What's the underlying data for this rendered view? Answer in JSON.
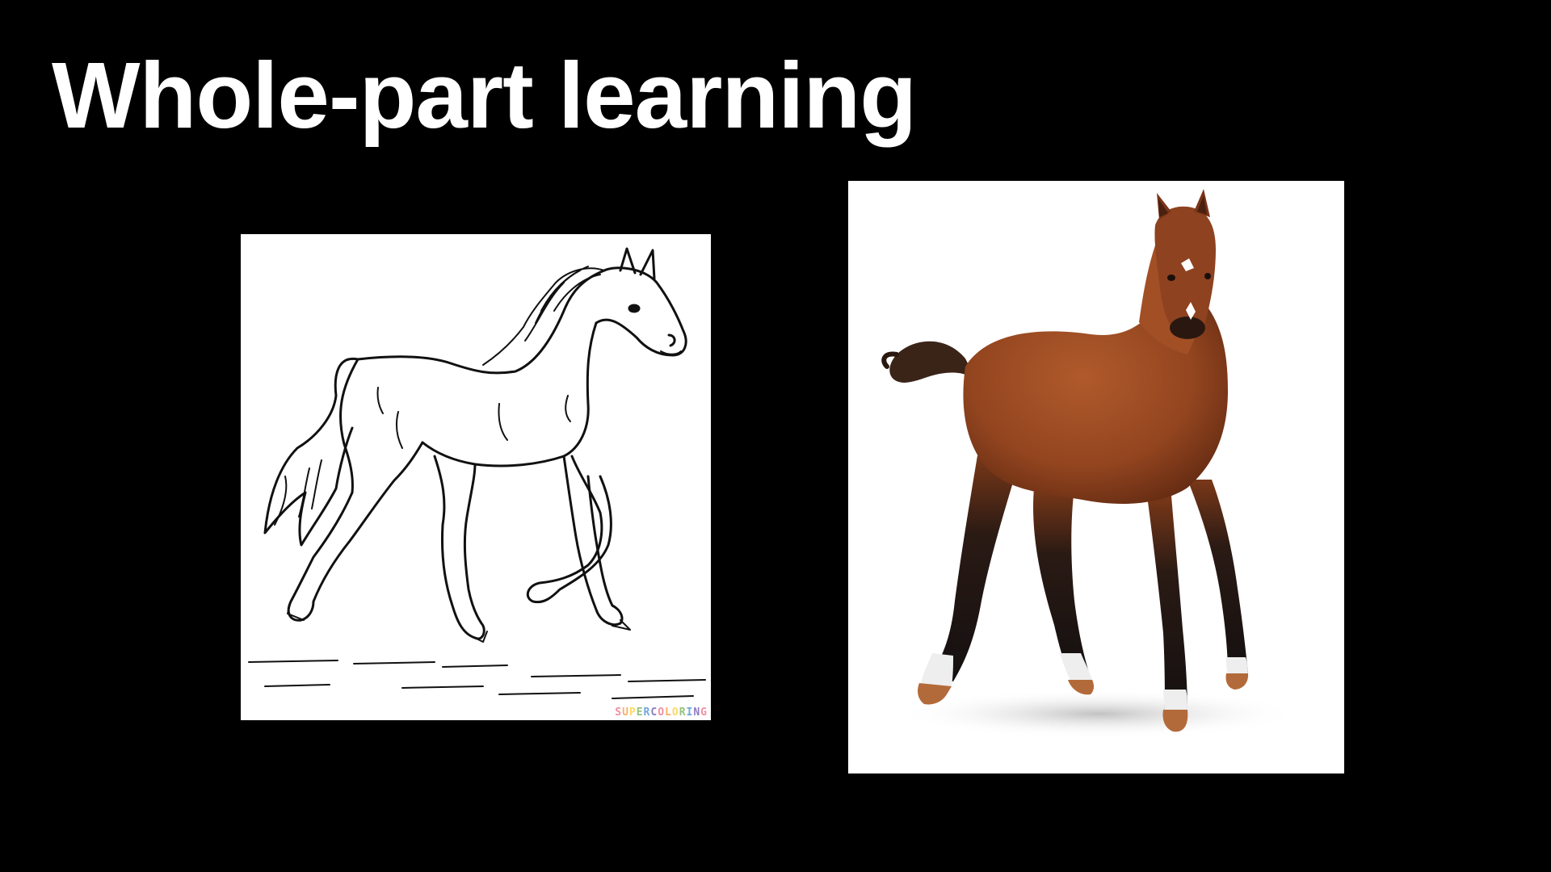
{
  "slide": {
    "title": "Whole-part learning"
  },
  "left_image": {
    "subject": "line-drawing-horse",
    "watermark": "SUPERCOLORING",
    "watermark_colors": [
      "#ef8fa0",
      "#f6b26b",
      "#ffd966",
      "#93c47d",
      "#6fa8dc",
      "#8e7cc3",
      "#ef8fa0",
      "#f6b26b",
      "#ffd966",
      "#93c47d",
      "#6fa8dc",
      "#8e7cc3",
      "#ef8fa0"
    ]
  },
  "right_image": {
    "subject": "bay-foal-figurine",
    "colors": {
      "body": "#9a4a22",
      "body_shade": "#6e2f14",
      "legs": "#1c1210",
      "socks": "#f2f2f2",
      "hooves": "#b36a3a",
      "blaze": "#ffffff"
    }
  }
}
